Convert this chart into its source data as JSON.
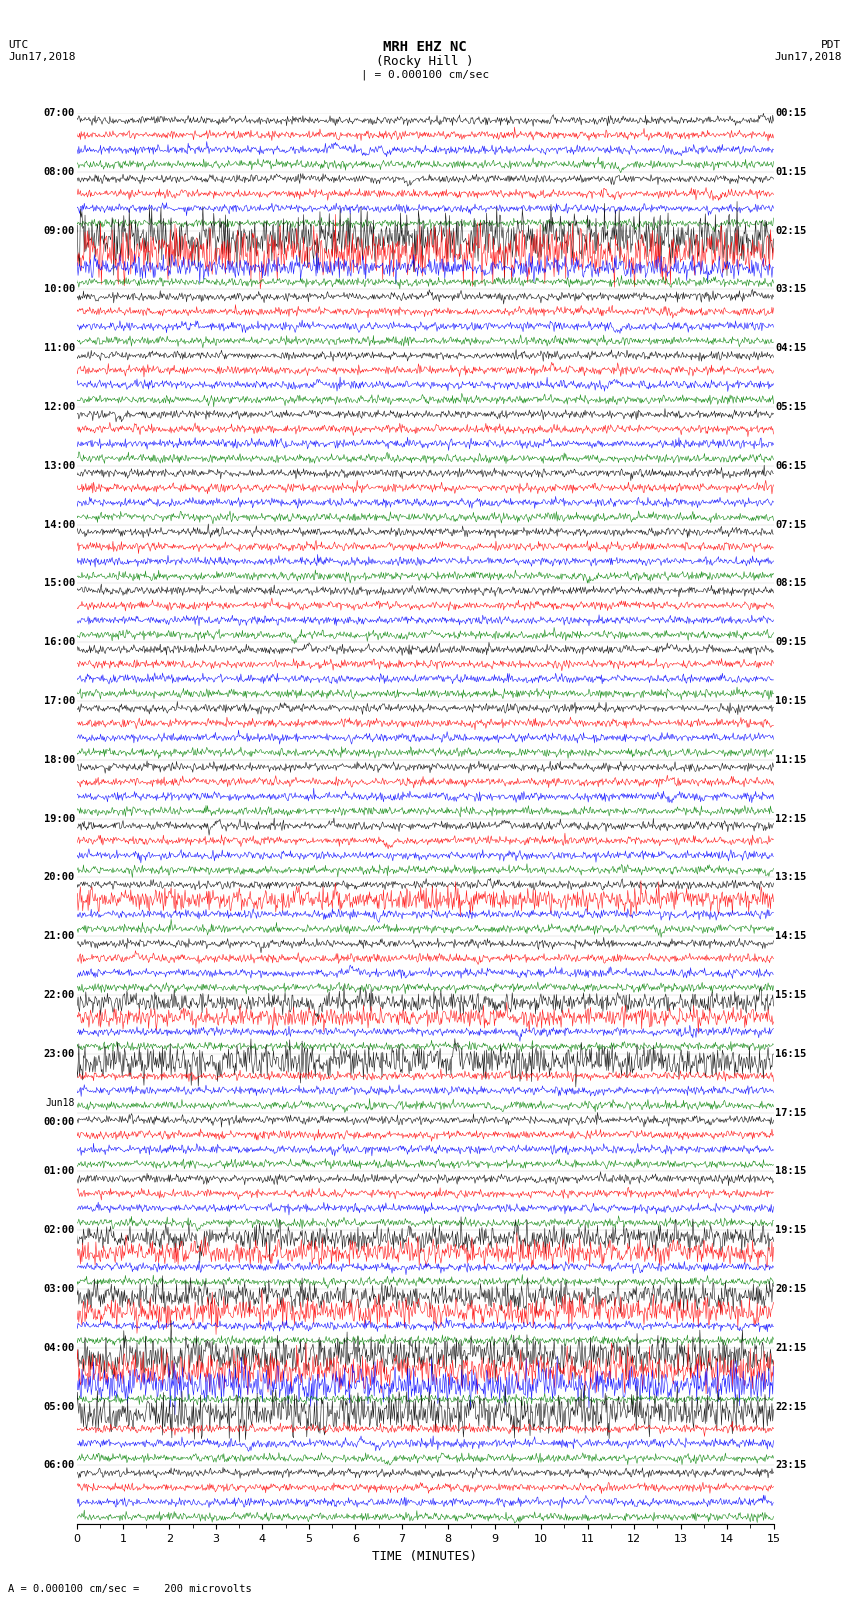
{
  "title_line1": "MRH EHZ NC",
  "title_line2": "(Rocky Hill )",
  "scale_bar": "| = 0.000100 cm/sec",
  "scale_bar_bottom": "= 0.000100 cm/sec =    200 microvolts",
  "utc_label": "UTC",
  "pdt_label": "PDT",
  "date_left": "Jun17,2018",
  "date_right": "Jun17,2018",
  "xlabel": "TIME (MINUTES)",
  "bg_color": "#ffffff",
  "trace_colors": [
    "black",
    "red",
    "blue",
    "green"
  ],
  "left_times": [
    "07:00",
    "08:00",
    "09:00",
    "10:00",
    "11:00",
    "12:00",
    "13:00",
    "14:00",
    "15:00",
    "16:00",
    "17:00",
    "18:00",
    "19:00",
    "20:00",
    "21:00",
    "22:00",
    "23:00",
    "Jun18\n00:00",
    "01:00",
    "02:00",
    "03:00",
    "04:00",
    "05:00",
    "06:00"
  ],
  "right_times": [
    "00:15",
    "01:15",
    "02:15",
    "03:15",
    "04:15",
    "05:15",
    "06:15",
    "07:15",
    "08:15",
    "09:15",
    "10:15",
    "11:15",
    "12:15",
    "13:15",
    "14:15",
    "15:15",
    "16:15",
    "17:15",
    "18:15",
    "19:15",
    "20:15",
    "21:15",
    "22:15",
    "23:15"
  ],
  "num_rows": 24,
  "traces_per_row": 4,
  "xmin": 0,
  "xmax": 15,
  "noise_amp": 0.3,
  "seed": 42
}
